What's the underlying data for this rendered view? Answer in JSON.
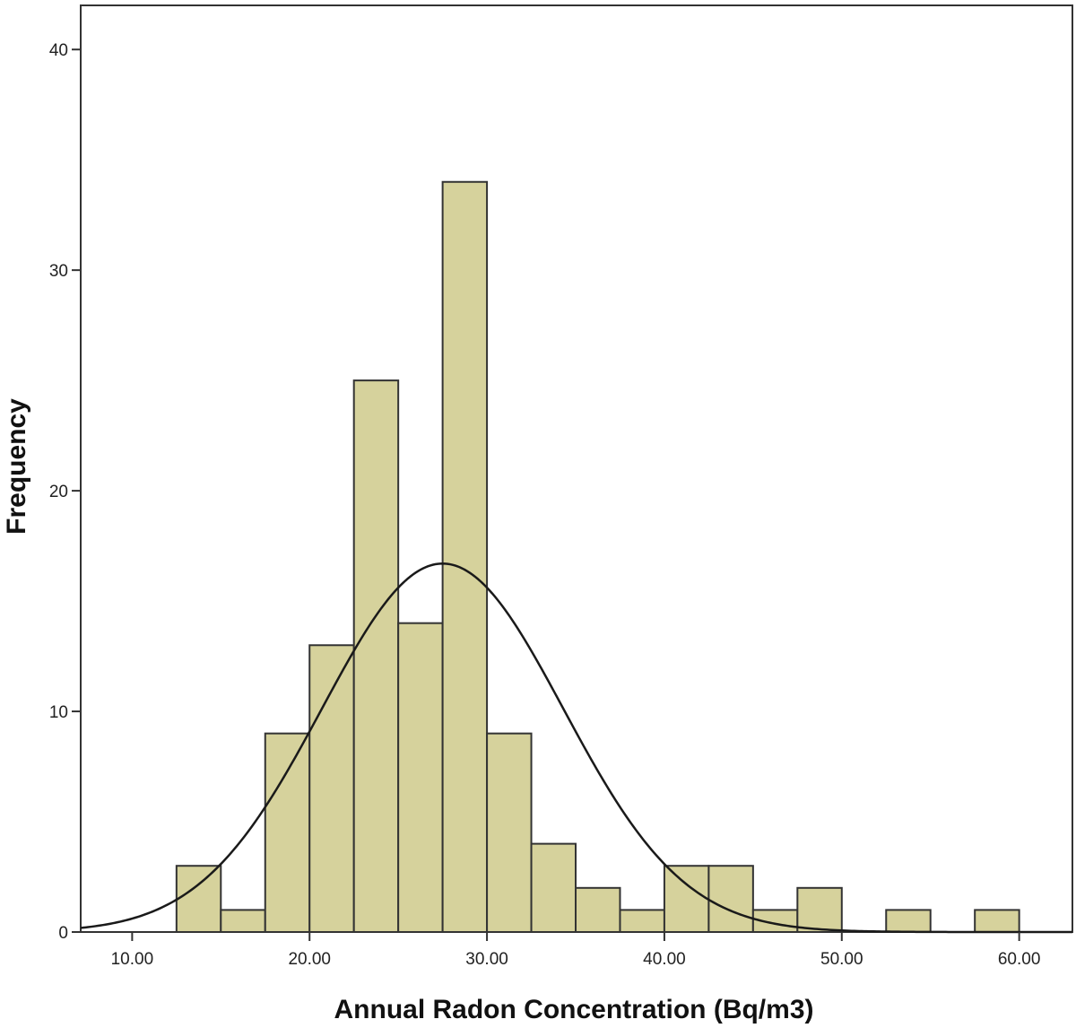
{
  "chart_data": {
    "type": "bar",
    "subtype": "histogram",
    "title": "",
    "xlabel": "Annual Radon Concentration (Bq/m3)",
    "ylabel": "Frequency",
    "xlim": [
      7.1,
      63.0
    ],
    "ylim": [
      0,
      42
    ],
    "x_ticks": [
      10,
      20,
      30,
      40,
      50,
      60
    ],
    "x_tick_labels": [
      "10.00",
      "20.00",
      "30.00",
      "40.00",
      "50.00",
      "60.00"
    ],
    "y_ticks": [
      0,
      10,
      20,
      30,
      40
    ],
    "y_tick_labels": [
      "0",
      "10",
      "20",
      "30",
      "40"
    ],
    "bin_width": 2.5,
    "bins": [
      {
        "start": 12.5,
        "end": 15.0,
        "count": 3
      },
      {
        "start": 15.0,
        "end": 17.5,
        "count": 1
      },
      {
        "start": 17.5,
        "end": 20.0,
        "count": 9
      },
      {
        "start": 20.0,
        "end": 22.5,
        "count": 13
      },
      {
        "start": 22.5,
        "end": 25.0,
        "count": 25
      },
      {
        "start": 25.0,
        "end": 27.5,
        "count": 14
      },
      {
        "start": 27.5,
        "end": 30.0,
        "count": 34
      },
      {
        "start": 30.0,
        "end": 32.5,
        "count": 9
      },
      {
        "start": 32.5,
        "end": 35.0,
        "count": 4
      },
      {
        "start": 35.0,
        "end": 37.5,
        "count": 2
      },
      {
        "start": 37.5,
        "end": 40.0,
        "count": 1
      },
      {
        "start": 40.0,
        "end": 42.5,
        "count": 3
      },
      {
        "start": 42.5,
        "end": 45.0,
        "count": 3
      },
      {
        "start": 45.0,
        "end": 47.5,
        "count": 1
      },
      {
        "start": 47.5,
        "end": 50.0,
        "count": 2
      },
      {
        "start": 52.5,
        "end": 55.0,
        "count": 1
      },
      {
        "start": 57.5,
        "end": 60.0,
        "count": 1
      }
    ],
    "normal_curve": {
      "mean": 27.5,
      "std_dev": 6.8,
      "peak": 16.7
    },
    "grid": false,
    "colors": {
      "bar_fill": "#d6d29c",
      "bar_stroke": "#333333",
      "curve": "#1a1a1a",
      "frame": "#333333"
    }
  }
}
